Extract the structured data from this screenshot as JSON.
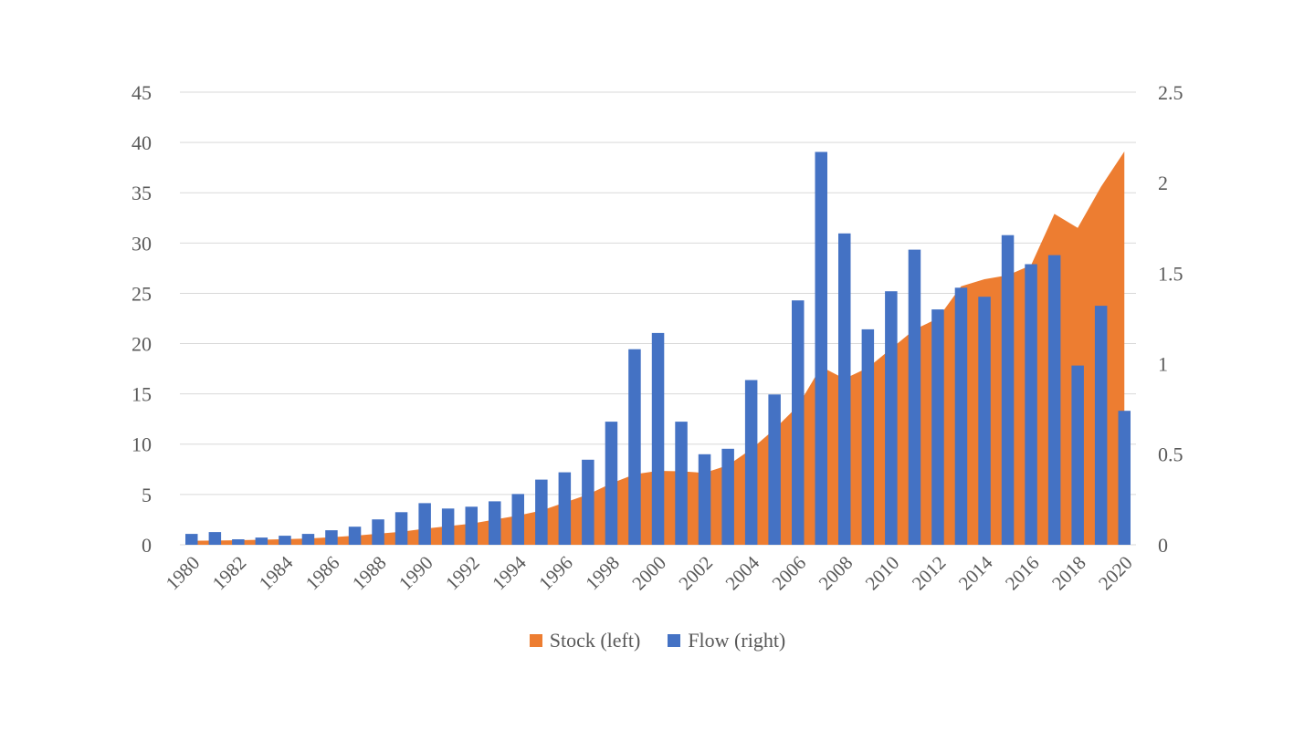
{
  "chart_data": {
    "type": "combo",
    "title": "",
    "x": [
      1980,
      1981,
      1982,
      1983,
      1984,
      1985,
      1986,
      1987,
      1988,
      1989,
      1990,
      1991,
      1992,
      1993,
      1994,
      1995,
      1996,
      1997,
      1998,
      1999,
      2000,
      2001,
      2002,
      2003,
      2004,
      2005,
      2006,
      2007,
      2008,
      2009,
      2010,
      2011,
      2012,
      2013,
      2014,
      2015,
      2016,
      2017,
      2018,
      2019,
      2020
    ],
    "x_tick_labels": [
      "1980",
      "1982",
      "1984",
      "1986",
      "1988",
      "1990",
      "1992",
      "1994",
      "1996",
      "1998",
      "2000",
      "2002",
      "2004",
      "2006",
      "2008",
      "2010",
      "2012",
      "2014",
      "2016",
      "2018",
      "2020"
    ],
    "series": [
      {
        "name": "Stock (left)",
        "type": "area",
        "axis": "left",
        "color": "#ED7D31",
        "values": [
          0.4,
          0.42,
          0.45,
          0.5,
          0.55,
          0.63,
          0.75,
          0.9,
          1.1,
          1.3,
          1.6,
          1.85,
          2.1,
          2.5,
          2.9,
          3.4,
          4.2,
          5.0,
          6.1,
          7.0,
          7.35,
          7.3,
          7.15,
          7.9,
          9.5,
          11.5,
          13.8,
          17.7,
          16.5,
          17.6,
          19.5,
          21.4,
          22.5,
          25.7,
          26.4,
          26.8,
          27.8,
          32.9,
          31.5,
          35.6,
          39.1
        ]
      },
      {
        "name": "Flow (right)",
        "type": "bar",
        "axis": "right",
        "color": "#4472C4",
        "values": [
          0.06,
          0.07,
          0.03,
          0.04,
          0.05,
          0.06,
          0.08,
          0.1,
          0.14,
          0.18,
          0.23,
          0.2,
          0.21,
          0.24,
          0.28,
          0.36,
          0.4,
          0.47,
          0.68,
          1.08,
          1.17,
          0.68,
          0.5,
          0.53,
          0.91,
          0.83,
          1.35,
          2.17,
          1.72,
          1.19,
          1.4,
          1.63,
          1.3,
          1.42,
          1.37,
          1.71,
          1.55,
          1.6,
          0.99,
          1.32,
          0.74
        ]
      }
    ],
    "axes": {
      "left": {
        "min": 0,
        "max": 45,
        "step": 5,
        "tick_labels": [
          "0",
          "5",
          "10",
          "15",
          "20",
          "25",
          "30",
          "35",
          "40",
          "45"
        ]
      },
      "right": {
        "min": 0,
        "max": 2.5,
        "step": 0.5,
        "tick_labels": [
          "0",
          "0.5",
          "1",
          "1.5",
          "2",
          "2.5"
        ]
      }
    },
    "grid": true,
    "legend_position": "bottom"
  },
  "colors": {
    "stock": "#ED7D31",
    "flow": "#4472C4",
    "gridline": "#D9D9D9",
    "axis_text": "#595959",
    "background": "#FFFFFF"
  }
}
